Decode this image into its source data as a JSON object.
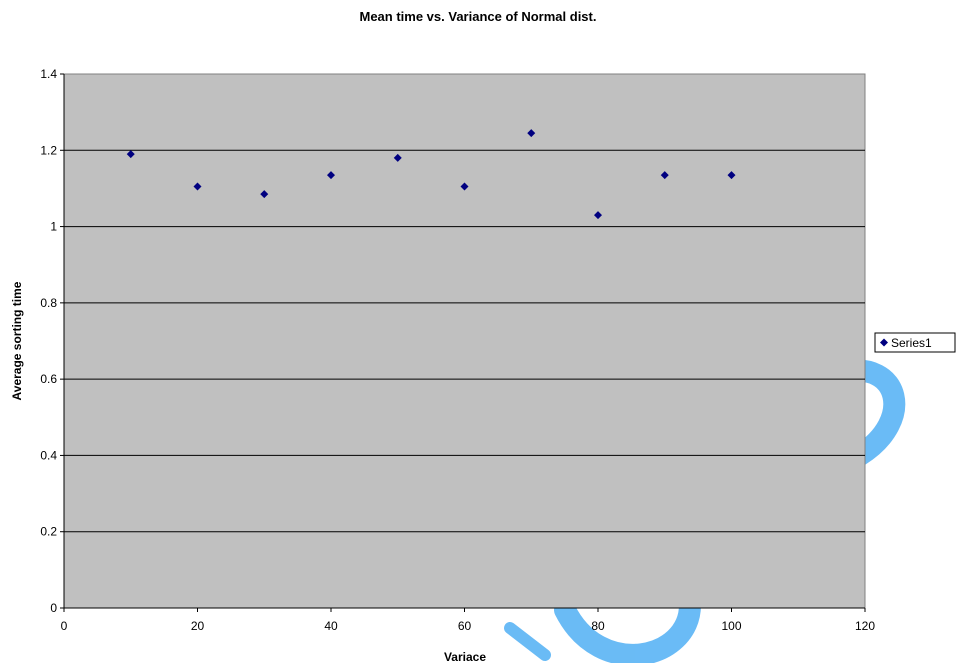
{
  "chart_data": {
    "type": "scatter",
    "title": "Mean time vs. Variance of Normal dist.",
    "xlabel": "Variace",
    "ylabel": "Average sorting time",
    "xlim": [
      0,
      120
    ],
    "ylim": [
      0,
      1.4
    ],
    "xticks": [
      "0",
      "20",
      "40",
      "60",
      "80",
      "100",
      "120"
    ],
    "yticks": [
      "0",
      "0.2",
      "0.4",
      "0.6",
      "0.8",
      "1",
      "1.2",
      "1.4"
    ],
    "grid": "horizontal",
    "legend_position": "right",
    "plot_background": "#c0c0c0",
    "series": [
      {
        "name": "Series1",
        "color": "#000080",
        "marker": "diamond",
        "x": [
          10,
          20,
          30,
          40,
          50,
          60,
          70,
          80,
          90,
          100
        ],
        "y": [
          1.19,
          1.105,
          1.085,
          1.135,
          1.18,
          1.105,
          1.245,
          1.03,
          1.135,
          1.135
        ]
      }
    ]
  }
}
